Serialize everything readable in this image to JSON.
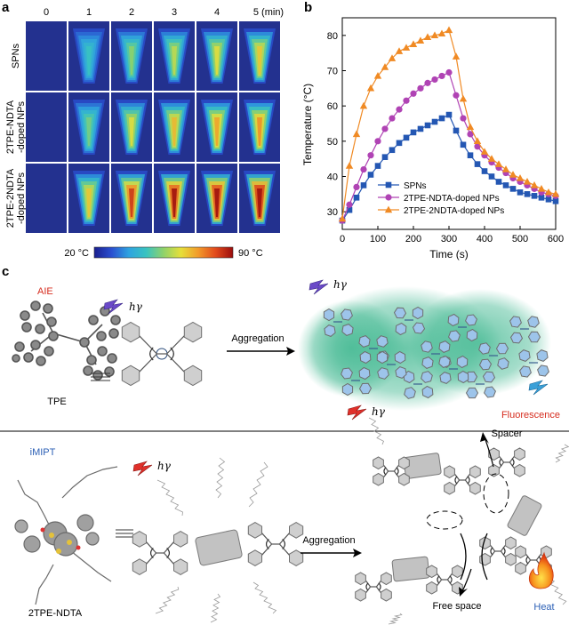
{
  "panels": {
    "a": "a",
    "b": "b",
    "c": "c"
  },
  "panel_a": {
    "time_labels": [
      "0",
      "1",
      "2",
      "3",
      "4",
      "5 (min)"
    ],
    "row_labels": [
      [
        "SPNs"
      ],
      [
        "2TPE-NDTA",
        "-doped NPs"
      ],
      [
        "2TPE-2NDTA",
        "-doped NPs"
      ]
    ],
    "thermal_intensity": [
      [
        0.05,
        0.25,
        0.38,
        0.45,
        0.5,
        0.55
      ],
      [
        0.06,
        0.35,
        0.5,
        0.58,
        0.62,
        0.65
      ],
      [
        0.07,
        0.55,
        0.8,
        0.88,
        0.92,
        0.96
      ]
    ],
    "colorbar": {
      "min_label": "20 °C",
      "max_label": "90 °C",
      "colors": [
        "#1a1f8f",
        "#2a4fd0",
        "#2fa3e0",
        "#39c3c0",
        "#8fd26a",
        "#e6df3a",
        "#f29a2a",
        "#e24a1c",
        "#9b0d0d"
      ]
    }
  },
  "chart_data": {
    "type": "line",
    "title": "",
    "xlabel": "Time (s)",
    "ylabel": "Temperature (°C)",
    "xlim": [
      0,
      600
    ],
    "ylim": [
      25,
      85
    ],
    "xticks": [
      0,
      100,
      200,
      300,
      400,
      500,
      600
    ],
    "yticks": [
      30,
      40,
      50,
      60,
      70,
      80
    ],
    "legend_position": "bottom-center",
    "x": [
      0,
      20,
      40,
      60,
      80,
      100,
      120,
      140,
      160,
      180,
      200,
      220,
      240,
      260,
      280,
      300,
      320,
      340,
      360,
      380,
      400,
      420,
      440,
      460,
      480,
      500,
      520,
      540,
      560,
      580,
      600
    ],
    "series": [
      {
        "name": "SPNs",
        "marker": "square",
        "color": "#2457b3",
        "values": [
          27.5,
          30.5,
          34,
          37.5,
          40.5,
          43,
          45.5,
          47.5,
          49.5,
          51,
          52.5,
          53.5,
          54.5,
          55.5,
          56.5,
          57.5,
          53,
          49,
          46,
          43.5,
          41.5,
          40,
          38.5,
          37.5,
          36.5,
          35.5,
          35,
          34.5,
          34,
          33.5,
          33
        ]
      },
      {
        "name": "2TPE-NDTA-doped NPs",
        "marker": "circle",
        "color": "#b043b4",
        "values": [
          27.5,
          32,
          37,
          42,
          46,
          50,
          53.5,
          56.5,
          59,
          61.5,
          63.5,
          65,
          66.5,
          67.5,
          68.5,
          69.5,
          63,
          56.5,
          52,
          48.5,
          46,
          44,
          42.5,
          41,
          39.5,
          38.5,
          37.5,
          36.5,
          35.5,
          35,
          34.5
        ]
      },
      {
        "name": "2TPE-2NDTA-doped NPs",
        "marker": "triangle",
        "color": "#f08a24",
        "values": [
          28,
          43,
          52,
          60,
          65,
          68.5,
          71,
          73.5,
          75.5,
          76.5,
          77.5,
          78.5,
          79.5,
          80,
          80.5,
          81.5,
          74,
          62,
          54,
          50,
          47,
          45,
          43.5,
          42,
          40.5,
          39.5,
          38.5,
          37.5,
          36.5,
          35.5,
          35
        ]
      }
    ]
  },
  "panel_c": {
    "top": {
      "aie_label": "AIE",
      "tpe_label": "TPE",
      "excitation_label": "hγ",
      "arrow_label": "Aggregation",
      "result_label": "Fluorescence",
      "aie_color": "#d62c1e",
      "fluorescence_color": "#d62c1e",
      "glow_color": "#39b58c"
    },
    "bottom": {
      "imipt_label": "iMIPT",
      "molecule_label": "2TPE-NDTA",
      "excitation_label": "hγ",
      "arrow_label": "Aggregation",
      "spacer_label": "Spacer",
      "free_space_label": "Free space",
      "heat_label": "Heat",
      "imipt_color": "#2b5fb5",
      "heat_color": "#2b5fb5"
    }
  }
}
